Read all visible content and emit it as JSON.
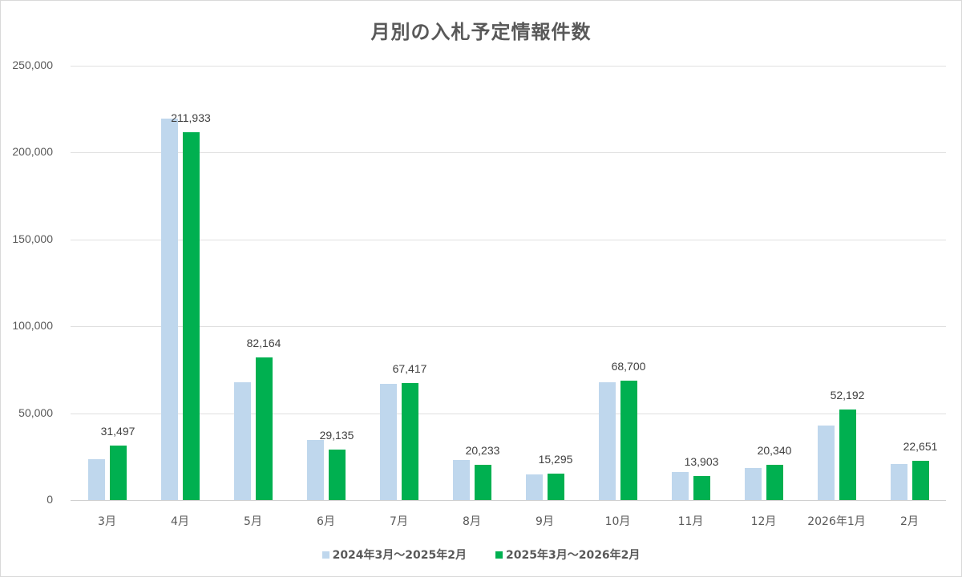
{
  "chart_data": {
    "type": "bar",
    "title": "月別の入札予定情報件数",
    "xlabel": "",
    "ylabel": "",
    "ylim": [
      0,
      250000
    ],
    "yticks": [
      "0",
      "50,000",
      "100,000",
      "150,000",
      "200,000",
      "250,000"
    ],
    "grid": true,
    "legend_position": "bottom",
    "categories": [
      "3月",
      "4月",
      "5月",
      "6月",
      "7月",
      "8月",
      "9月",
      "10月",
      "11月",
      "12月",
      "2026年1月",
      "2月"
    ],
    "series": [
      {
        "name": "2024年3月～2025年2月",
        "color": "#bfd7ed",
        "values": [
          23500,
          219600,
          67800,
          34600,
          66900,
          23100,
          14800,
          67800,
          16100,
          18500,
          42900,
          20800
        ]
      },
      {
        "name": "2025年3月～2026年2月",
        "color": "#00b050",
        "values": [
          31497,
          211933,
          82164,
          29135,
          67417,
          20233,
          15295,
          68700,
          13903,
          20340,
          52192,
          22651
        ],
        "data_labels": [
          "31,497",
          "211,933",
          "82,164",
          "29,135",
          "67,417",
          "20,233",
          "15,295",
          "68,700",
          "13,903",
          "20,340",
          "52,192",
          "22,651"
        ]
      }
    ]
  }
}
